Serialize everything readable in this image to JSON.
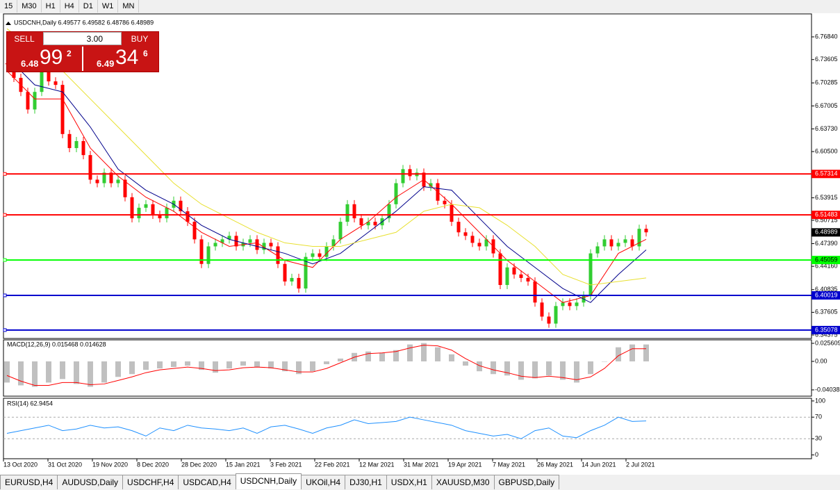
{
  "toolbar": {
    "timeframes": [
      "15",
      "M30",
      "H1",
      "H4",
      "D1",
      "W1",
      "MN"
    ]
  },
  "trade_panel": {
    "sell": "SELL",
    "buy": "BUY",
    "lot": "3.00",
    "bid_big": "6.48",
    "bid_main": "99",
    "bid_sup": "2",
    "ask_big": "6.49",
    "ask_main": "34",
    "ask_sup": "6"
  },
  "chart_data": [
    {
      "type": "candlestick",
      "title": "USDCNH,Daily 6.49577 6.49582 6.48786 6.48989",
      "ylim": [
        6.3388,
        6.8011
      ],
      "yticks": [
        {
          "value": 6.7684,
          "label": "6.76840"
        },
        {
          "value": 6.73605,
          "label": "6.73605"
        },
        {
          "value": 6.70285,
          "label": "6.70285"
        },
        {
          "value": 6.67005,
          "label": "6.67005"
        },
        {
          "value": 6.6373,
          "label": "6.63730"
        },
        {
          "value": 6.605,
          "label": "6.60500"
        },
        {
          "value": 6.53915,
          "label": "6.53915"
        },
        {
          "value": 6.50715,
          "label": "6.50715"
        },
        {
          "value": 6.4739,
          "label": "6.47390"
        },
        {
          "value": 6.4416,
          "label": "6.44160"
        },
        {
          "value": 6.40835,
          "label": "6.40835"
        },
        {
          "value": 6.37605,
          "label": "6.37605"
        },
        {
          "value": 6.34375,
          "label": "6.34375"
        }
      ],
      "date_labels": [
        "13 Oct 2020",
        "31 Oct 2020",
        "19 Nov 2020",
        "8 Dec 2020",
        "28 Dec 2020",
        "15 Jan 2021",
        "3 Feb 2021",
        "22 Feb 2021",
        "12 Mar 2021",
        "31 Mar 2021",
        "19 Apr 2021",
        "7 May 2021",
        "26 May 2021",
        "14 Jun 2021",
        "2 Jul 2021"
      ],
      "up_color": "#32cd32",
      "down_color": "#ff0000",
      "close": [
        6.73,
        6.71,
        6.69,
        6.665,
        6.69,
        6.72,
        6.705,
        6.7,
        6.63,
        6.61,
        6.62,
        6.6,
        6.565,
        6.56,
        6.575,
        6.56,
        6.565,
        6.54,
        6.51,
        6.525,
        6.53,
        6.515,
        6.51,
        6.525,
        6.535,
        6.52,
        6.505,
        6.48,
        6.445,
        6.47,
        6.475,
        6.48,
        6.485,
        6.47,
        6.475,
        6.48,
        6.465,
        6.475,
        6.47,
        6.445,
        6.42,
        6.425,
        6.41,
        6.455,
        6.46,
        6.455,
        6.47,
        6.48,
        6.505,
        6.53,
        6.51,
        6.5,
        6.505,
        6.5,
        6.51,
        6.53,
        6.56,
        6.58,
        6.57,
        6.575,
        6.555,
        6.56,
        6.535,
        6.53,
        6.505,
        6.49,
        6.485,
        6.475,
        6.47,
        6.48,
        6.46,
        6.415,
        6.44,
        6.43,
        6.425,
        6.42,
        6.39,
        6.37,
        6.36,
        6.385,
        6.39,
        6.385,
        6.39,
        6.4,
        6.46,
        6.47,
        6.48,
        6.47,
        6.475,
        6.48,
        6.47,
        6.495,
        6.49
      ],
      "series": [
        {
          "color": "#ff0000",
          "values": [
            6.72,
            6.68,
            6.68,
            6.61,
            6.57,
            6.54,
            6.52,
            6.49,
            6.47,
            6.475,
            6.45,
            6.44,
            6.48,
            6.505,
            6.54,
            6.565,
            6.53,
            6.49,
            6.45,
            6.42,
            6.39,
            6.4,
            6.46,
            6.48
          ]
        },
        {
          "color": "#00008b",
          "values": [
            6.74,
            6.7,
            6.69,
            6.64,
            6.58,
            6.55,
            6.53,
            6.5,
            6.48,
            6.47,
            6.46,
            6.445,
            6.46,
            6.49,
            6.52,
            6.555,
            6.55,
            6.51,
            6.47,
            6.44,
            6.41,
            6.39,
            6.43,
            6.465
          ]
        },
        {
          "color": "#e8e030",
          "values": [
            6.78,
            6.75,
            6.72,
            6.68,
            6.64,
            6.6,
            6.56,
            6.53,
            6.51,
            6.49,
            6.475,
            6.47,
            6.47,
            6.48,
            6.49,
            6.52,
            6.53,
            6.525,
            6.5,
            6.47,
            6.43,
            6.415,
            6.42,
            6.425
          ]
        }
      ],
      "levels": [
        {
          "value": 6.57314,
          "color": "#ff0000"
        },
        {
          "value": 6.51483,
          "color": "#ff0000"
        },
        {
          "value": 6.45059,
          "color": "#00ff00"
        },
        {
          "value": 6.40019,
          "color": "#0000cd"
        },
        {
          "value": 6.35078,
          "color": "#0000cd"
        }
      ],
      "current_price": 6.48989
    },
    {
      "type": "macd",
      "title": "MACD(12,26,9) 0.015468 0.014628",
      "ylim": [
        -0.0493,
        0.0305
      ],
      "yticks": [
        0.025609,
        {
          "value": 0,
          "label": "0.00"
        },
        -0.040387
      ],
      "histogram": {
        "color": "#c0c0c0",
        "values": [
          -0.03,
          -0.034,
          -0.036,
          -0.03,
          -0.025,
          -0.032,
          -0.036,
          -0.03,
          -0.022,
          -0.018,
          -0.012,
          -0.01,
          -0.008,
          -0.006,
          -0.012,
          -0.016,
          -0.01,
          -0.006,
          -0.008,
          -0.01,
          -0.014,
          -0.018,
          -0.014,
          -0.004,
          0.004,
          0.012,
          0.014,
          0.012,
          0.016,
          0.024,
          0.026,
          0.02,
          0.01,
          -0.006,
          -0.014,
          -0.018,
          -0.02,
          -0.026,
          -0.024,
          -0.02,
          -0.026,
          -0.03,
          -0.018,
          0.0,
          0.02,
          0.024,
          0.024
        ]
      },
      "signal": {
        "color": "#ff0000",
        "values": [
          -0.02,
          -0.028,
          -0.034,
          -0.034,
          -0.03,
          -0.03,
          -0.033,
          -0.032,
          -0.027,
          -0.022,
          -0.016,
          -0.012,
          -0.01,
          -0.008,
          -0.01,
          -0.013,
          -0.012,
          -0.009,
          -0.008,
          -0.009,
          -0.012,
          -0.015,
          -0.015,
          -0.01,
          -0.002,
          0.006,
          0.011,
          0.012,
          0.014,
          0.019,
          0.023,
          0.022,
          0.016,
          0.004,
          -0.006,
          -0.012,
          -0.016,
          -0.021,
          -0.023,
          -0.021,
          -0.023,
          -0.026,
          -0.022,
          -0.01,
          0.008,
          0.018,
          0.018
        ]
      }
    },
    {
      "type": "rsi",
      "title": "RSI(14) 62.9454",
      "ylim": [
        -7,
        105
      ],
      "yticks": [
        100,
        70,
        30,
        0
      ],
      "levels": [
        70,
        30
      ],
      "color": "#1e90ff",
      "values": [
        40,
        45,
        50,
        55,
        45,
        48,
        55,
        50,
        52,
        45,
        35,
        50,
        45,
        55,
        50,
        48,
        45,
        50,
        40,
        52,
        55,
        48,
        40,
        50,
        55,
        65,
        58,
        60,
        62,
        70,
        65,
        60,
        55,
        45,
        40,
        35,
        38,
        30,
        45,
        50,
        35,
        32,
        45,
        55,
        70,
        62,
        63
      ]
    }
  ],
  "tabs": [
    "EURUSD,H4",
    "AUDUSD,Daily",
    "USDCHF,H4",
    "USDCAD,H4",
    "USDCNH,Daily",
    "UKOil,H4",
    "DJ30,H1",
    "USDX,H1",
    "XAUUSD,M30",
    "GBPUSD,Daily"
  ],
  "active_tab": 4
}
